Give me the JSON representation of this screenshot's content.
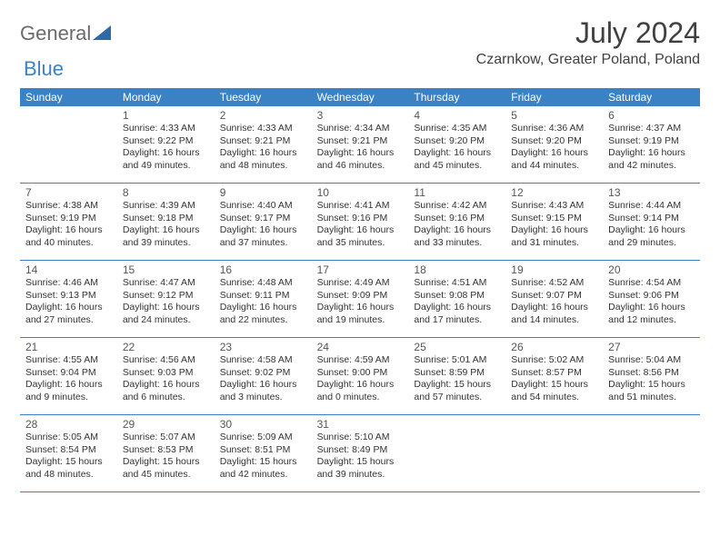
{
  "logo": {
    "general": "General",
    "blue": "Blue"
  },
  "title": "July 2024",
  "location": "Czarnkow, Greater Poland, Poland",
  "colors": {
    "header_bg": "#3b82c4",
    "header_text": "#ffffff",
    "divider": "#3b82c4",
    "text": "#333333",
    "daynum": "#555555"
  },
  "day_names": [
    "Sunday",
    "Monday",
    "Tuesday",
    "Wednesday",
    "Thursday",
    "Friday",
    "Saturday"
  ],
  "weeks": [
    [
      {
        "day": "",
        "lines": []
      },
      {
        "day": "1",
        "lines": [
          "Sunrise: 4:33 AM",
          "Sunset: 9:22 PM",
          "Daylight: 16 hours",
          "and 49 minutes."
        ]
      },
      {
        "day": "2",
        "lines": [
          "Sunrise: 4:33 AM",
          "Sunset: 9:21 PM",
          "Daylight: 16 hours",
          "and 48 minutes."
        ]
      },
      {
        "day": "3",
        "lines": [
          "Sunrise: 4:34 AM",
          "Sunset: 9:21 PM",
          "Daylight: 16 hours",
          "and 46 minutes."
        ]
      },
      {
        "day": "4",
        "lines": [
          "Sunrise: 4:35 AM",
          "Sunset: 9:20 PM",
          "Daylight: 16 hours",
          "and 45 minutes."
        ]
      },
      {
        "day": "5",
        "lines": [
          "Sunrise: 4:36 AM",
          "Sunset: 9:20 PM",
          "Daylight: 16 hours",
          "and 44 minutes."
        ]
      },
      {
        "day": "6",
        "lines": [
          "Sunrise: 4:37 AM",
          "Sunset: 9:19 PM",
          "Daylight: 16 hours",
          "and 42 minutes."
        ]
      }
    ],
    [
      {
        "day": "7",
        "lines": [
          "Sunrise: 4:38 AM",
          "Sunset: 9:19 PM",
          "Daylight: 16 hours",
          "and 40 minutes."
        ]
      },
      {
        "day": "8",
        "lines": [
          "Sunrise: 4:39 AM",
          "Sunset: 9:18 PM",
          "Daylight: 16 hours",
          "and 39 minutes."
        ]
      },
      {
        "day": "9",
        "lines": [
          "Sunrise: 4:40 AM",
          "Sunset: 9:17 PM",
          "Daylight: 16 hours",
          "and 37 minutes."
        ]
      },
      {
        "day": "10",
        "lines": [
          "Sunrise: 4:41 AM",
          "Sunset: 9:16 PM",
          "Daylight: 16 hours",
          "and 35 minutes."
        ]
      },
      {
        "day": "11",
        "lines": [
          "Sunrise: 4:42 AM",
          "Sunset: 9:16 PM",
          "Daylight: 16 hours",
          "and 33 minutes."
        ]
      },
      {
        "day": "12",
        "lines": [
          "Sunrise: 4:43 AM",
          "Sunset: 9:15 PM",
          "Daylight: 16 hours",
          "and 31 minutes."
        ]
      },
      {
        "day": "13",
        "lines": [
          "Sunrise: 4:44 AM",
          "Sunset: 9:14 PM",
          "Daylight: 16 hours",
          "and 29 minutes."
        ]
      }
    ],
    [
      {
        "day": "14",
        "lines": [
          "Sunrise: 4:46 AM",
          "Sunset: 9:13 PM",
          "Daylight: 16 hours",
          "and 27 minutes."
        ]
      },
      {
        "day": "15",
        "lines": [
          "Sunrise: 4:47 AM",
          "Sunset: 9:12 PM",
          "Daylight: 16 hours",
          "and 24 minutes."
        ]
      },
      {
        "day": "16",
        "lines": [
          "Sunrise: 4:48 AM",
          "Sunset: 9:11 PM",
          "Daylight: 16 hours",
          "and 22 minutes."
        ]
      },
      {
        "day": "17",
        "lines": [
          "Sunrise: 4:49 AM",
          "Sunset: 9:09 PM",
          "Daylight: 16 hours",
          "and 19 minutes."
        ]
      },
      {
        "day": "18",
        "lines": [
          "Sunrise: 4:51 AM",
          "Sunset: 9:08 PM",
          "Daylight: 16 hours",
          "and 17 minutes."
        ]
      },
      {
        "day": "19",
        "lines": [
          "Sunrise: 4:52 AM",
          "Sunset: 9:07 PM",
          "Daylight: 16 hours",
          "and 14 minutes."
        ]
      },
      {
        "day": "20",
        "lines": [
          "Sunrise: 4:54 AM",
          "Sunset: 9:06 PM",
          "Daylight: 16 hours",
          "and 12 minutes."
        ]
      }
    ],
    [
      {
        "day": "21",
        "lines": [
          "Sunrise: 4:55 AM",
          "Sunset: 9:04 PM",
          "Daylight: 16 hours",
          "and 9 minutes."
        ]
      },
      {
        "day": "22",
        "lines": [
          "Sunrise: 4:56 AM",
          "Sunset: 9:03 PM",
          "Daylight: 16 hours",
          "and 6 minutes."
        ]
      },
      {
        "day": "23",
        "lines": [
          "Sunrise: 4:58 AM",
          "Sunset: 9:02 PM",
          "Daylight: 16 hours",
          "and 3 minutes."
        ]
      },
      {
        "day": "24",
        "lines": [
          "Sunrise: 4:59 AM",
          "Sunset: 9:00 PM",
          "Daylight: 16 hours",
          "and 0 minutes."
        ]
      },
      {
        "day": "25",
        "lines": [
          "Sunrise: 5:01 AM",
          "Sunset: 8:59 PM",
          "Daylight: 15 hours",
          "and 57 minutes."
        ]
      },
      {
        "day": "26",
        "lines": [
          "Sunrise: 5:02 AM",
          "Sunset: 8:57 PM",
          "Daylight: 15 hours",
          "and 54 minutes."
        ]
      },
      {
        "day": "27",
        "lines": [
          "Sunrise: 5:04 AM",
          "Sunset: 8:56 PM",
          "Daylight: 15 hours",
          "and 51 minutes."
        ]
      }
    ],
    [
      {
        "day": "28",
        "lines": [
          "Sunrise: 5:05 AM",
          "Sunset: 8:54 PM",
          "Daylight: 15 hours",
          "and 48 minutes."
        ]
      },
      {
        "day": "29",
        "lines": [
          "Sunrise: 5:07 AM",
          "Sunset: 8:53 PM",
          "Daylight: 15 hours",
          "and 45 minutes."
        ]
      },
      {
        "day": "30",
        "lines": [
          "Sunrise: 5:09 AM",
          "Sunset: 8:51 PM",
          "Daylight: 15 hours",
          "and 42 minutes."
        ]
      },
      {
        "day": "31",
        "lines": [
          "Sunrise: 5:10 AM",
          "Sunset: 8:49 PM",
          "Daylight: 15 hours",
          "and 39 minutes."
        ]
      },
      {
        "day": "",
        "lines": []
      },
      {
        "day": "",
        "lines": []
      },
      {
        "day": "",
        "lines": []
      }
    ]
  ]
}
